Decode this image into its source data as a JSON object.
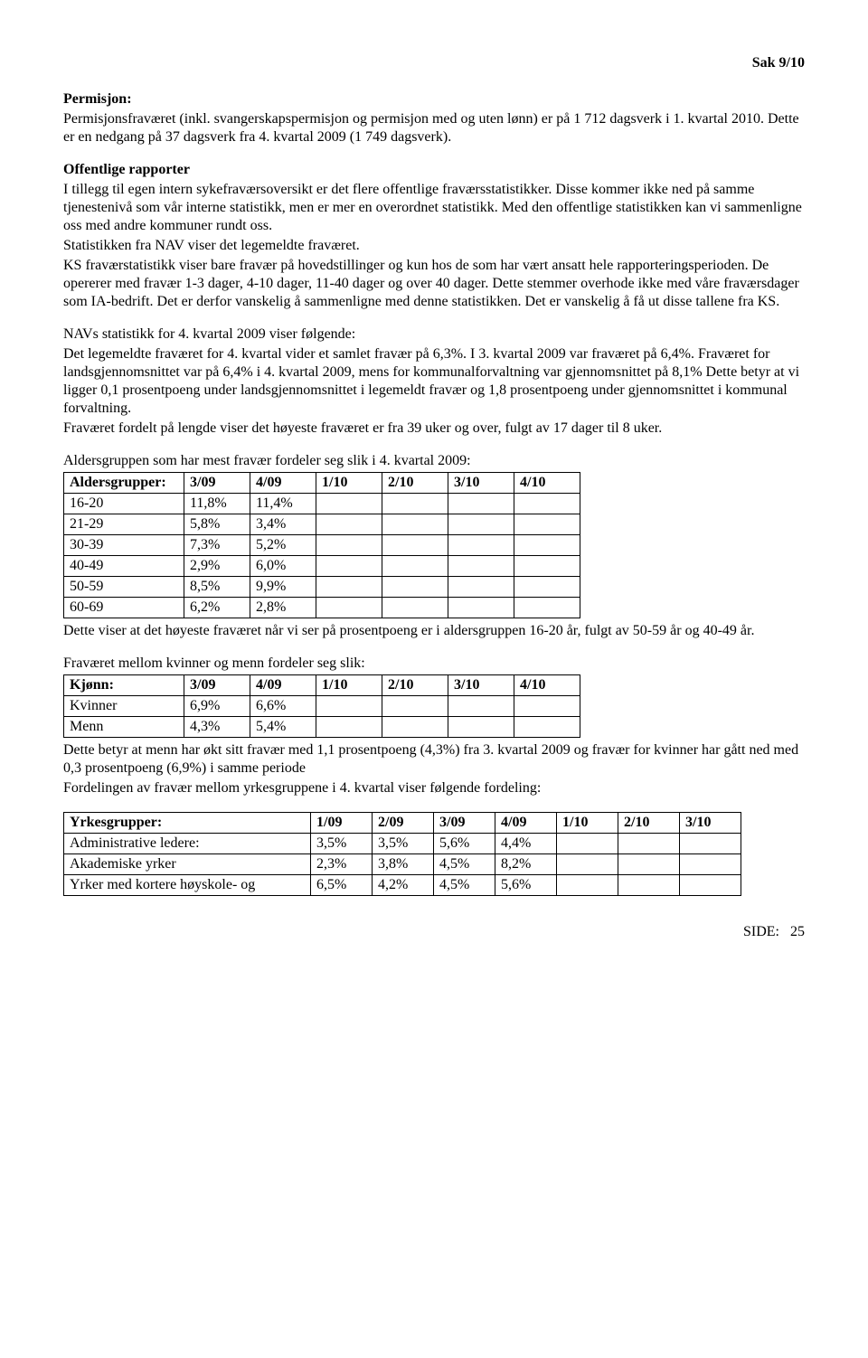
{
  "header": {
    "case_no": "Sak  9/10"
  },
  "sec_permisjon": {
    "title": "Permisjon:",
    "p1": "Permisjonsfraværet (inkl. svangerskapspermisjon og permisjon med og uten lønn) er på 1 712 dagsverk i 1. kvartal 2010.  Dette er en nedgang  på  37 dagsverk fra 4. kvartal 2009 (1 749 dagsverk)."
  },
  "sec_offentlige": {
    "title": "Offentlige rapporter",
    "p1": "I tillegg til egen intern sykefraværsoversikt er det flere offentlige fraværsstatistikker. Disse kommer ikke ned på samme tjenestenivå som vår interne statistikk, men er mer en overordnet statistikk. Med den offentlige statistikken kan vi sammenligne oss med andre kommuner rundt oss.",
    "p2": "Statistikken fra NAV viser det legemeldte fraværet.",
    "p3": "KS fraværstatistikk viser bare fravær på hovedstillinger og kun hos de som har vært ansatt hele rapporteringsperioden. De opererer med fravær 1-3 dager, 4-10 dager, 11-40 dager og over 40 dager. Dette stemmer overhode ikke med våre fraværsdager som IA-bedrift. Det er derfor vanskelig å sammenligne med denne statistikken. Det er vanskelig å få ut disse tallene fra KS."
  },
  "sec_nav": {
    "l1": "NAVs statistikk for 4. kvartal 2009 viser følgende:",
    "l2": "Det legemeldte fraværet for 4. kvartal vider et samlet fravær på 6,3%. I 3. kvartal 2009 var fraværet på 6,4%.  Fraværet for landsgjennomsnittet var på 6,4% i 4. kvartal 2009, mens for kommunalforvaltning var gjennomsnittet  på 8,1% Dette betyr at vi ligger 0,1 prosentpoeng under landsgjennomsnittet i legemeldt fravær og 1,8 prosentpoeng under gjennomsnittet i kommunal forvaltning.",
    "l3": "Fraværet fordelt på lengde viser det høyeste fraværet er fra 39 uker og over, fulgt av 17 dager til 8 uker."
  },
  "sec_alder": {
    "intro": "Aldersgruppen som har mest fravær fordeler seg slik i 4. kvartal 2009:",
    "columns": [
      "Aldersgrupper:",
      "3/09",
      "4/09",
      "1/10",
      "2/10",
      "3/10",
      "4/10"
    ],
    "rows": [
      [
        "16-20",
        "11,8%",
        "11,4%",
        "",
        "",
        "",
        ""
      ],
      [
        "21-29",
        "5,8%",
        "3,4%",
        "",
        "",
        "",
        ""
      ],
      [
        "30-39",
        "7,3%",
        "5,2%",
        "",
        "",
        "",
        ""
      ],
      [
        "40-49",
        "2,9%",
        "6,0%",
        "",
        "",
        "",
        ""
      ],
      [
        "50-59",
        "8,5%",
        "9,9%",
        "",
        "",
        "",
        ""
      ],
      [
        "60-69",
        "6,2%",
        "2,8%",
        "",
        "",
        "",
        ""
      ]
    ],
    "after": "Dette viser at det høyeste fraværet når vi ser på prosentpoeng er i aldersgruppen 16-20 år, fulgt av 50-59 år og 40-49 år."
  },
  "sec_kjonn": {
    "intro": "Fraværet mellom kvinner og menn fordeler seg slik:",
    "columns": [
      "Kjønn:",
      "3/09",
      "4/09",
      "1/10",
      "2/10",
      "3/10",
      "4/10"
    ],
    "rows": [
      [
        "Kvinner",
        "6,9%",
        "6,6%",
        "",
        "",
        "",
        ""
      ],
      [
        "Menn",
        "4,3%",
        "5,4%",
        "",
        "",
        "",
        ""
      ]
    ],
    "after1": "Dette betyr at menn har økt sitt fravær med 1,1 prosentpoeng (4,3%) fra 3. kvartal 2009 og fravær for kvinner har gått ned med 0,3 prosentpoeng (6,9%) i samme periode",
    "after2": "Fordelingen av fravær mellom yrkesgruppene i 4. kvartal viser følgende fordeling:"
  },
  "sec_yrke": {
    "columns": [
      "Yrkesgrupper:",
      "1/09",
      "2/09",
      "3/09",
      "4/09",
      "1/10",
      "2/10",
      "3/10"
    ],
    "rows": [
      [
        "Administrative ledere:",
        "3,5%",
        "3,5%",
        "5,6%",
        "4,4%",
        "",
        "",
        ""
      ],
      [
        "Akademiske yrker",
        "2,3%",
        "3,8%",
        "4,5%",
        "8,2%",
        "",
        "",
        ""
      ],
      [
        "Yrker med kortere høyskole- og",
        "6,5%",
        "4,2%",
        "4,5%",
        "5,6%",
        "",
        "",
        ""
      ]
    ]
  },
  "footer": {
    "label": "SIDE:",
    "num": "25"
  }
}
